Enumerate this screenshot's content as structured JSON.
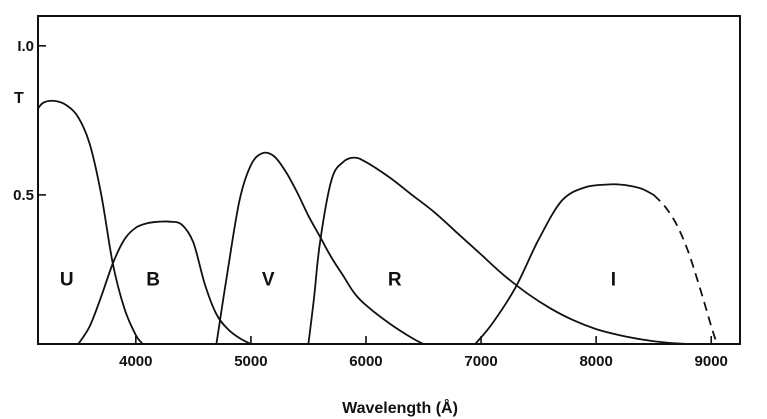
{
  "chart_data": {
    "type": "line",
    "title": "",
    "xlabel": "Wavelength (Å)",
    "ylabel": "T",
    "xlim": [
      3150,
      9250
    ],
    "ylim": [
      0,
      1.1
    ],
    "grid": false,
    "x_ticks": [
      4000,
      5000,
      6000,
      7000,
      8000,
      9000
    ],
    "x_tick_labels": [
      "4000",
      "5000",
      "6000",
      "7000",
      "8000",
      "9000"
    ],
    "y_ticks": [
      0.5,
      1.0
    ],
    "y_tick_labels": [
      "0.5",
      "I.0"
    ],
    "band_labels": [
      {
        "text": "U",
        "x": 3400,
        "y": 0.22
      },
      {
        "text": "B",
        "x": 4150,
        "y": 0.22
      },
      {
        "text": "V",
        "x": 5150,
        "y": 0.22
      },
      {
        "text": "R",
        "x": 6250,
        "y": 0.22
      },
      {
        "text": "I",
        "x": 8150,
        "y": 0.22
      }
    ],
    "series": [
      {
        "id": "U",
        "x": [
          3150,
          3200,
          3300,
          3400,
          3500,
          3600,
          3700,
          3800,
          3900,
          4000,
          4060
        ],
        "y": [
          0.79,
          0.81,
          0.815,
          0.8,
          0.76,
          0.67,
          0.5,
          0.27,
          0.12,
          0.03,
          0.0
        ]
      },
      {
        "id": "B",
        "x": [
          3500,
          3600,
          3700,
          3800,
          3900,
          4000,
          4100,
          4200,
          4300,
          4400,
          4500,
          4600,
          4700,
          4800,
          4900,
          5000
        ],
        "y": [
          0.0,
          0.06,
          0.16,
          0.27,
          0.35,
          0.39,
          0.405,
          0.41,
          0.41,
          0.4,
          0.34,
          0.2,
          0.1,
          0.05,
          0.02,
          0.0
        ]
      },
      {
        "id": "V",
        "x": [
          4700,
          4800,
          4900,
          5000,
          5100,
          5200,
          5300,
          5400,
          5500,
          5600,
          5700,
          5800,
          5900,
          6000,
          6200,
          6400,
          6500
        ],
        "y": [
          0.0,
          0.25,
          0.48,
          0.6,
          0.64,
          0.63,
          0.58,
          0.51,
          0.43,
          0.36,
          0.29,
          0.23,
          0.17,
          0.13,
          0.07,
          0.02,
          0.0
        ]
      },
      {
        "id": "R",
        "x": [
          5500,
          5550,
          5600,
          5700,
          5800,
          5900,
          6000,
          6200,
          6400,
          6600,
          6800,
          7000,
          7200,
          7400,
          7600,
          7800,
          8000,
          8200,
          8400,
          8600,
          8800
        ],
        "y": [
          0.0,
          0.16,
          0.34,
          0.55,
          0.61,
          0.625,
          0.61,
          0.56,
          0.5,
          0.44,
          0.37,
          0.3,
          0.23,
          0.17,
          0.12,
          0.08,
          0.05,
          0.03,
          0.015,
          0.005,
          0.0
        ]
      },
      {
        "id": "I",
        "x": [
          6950,
          7100,
          7300,
          7500,
          7700,
          7900,
          8100,
          8200,
          8300,
          8400,
          8500
        ],
        "y": [
          0.0,
          0.07,
          0.19,
          0.35,
          0.48,
          0.525,
          0.535,
          0.535,
          0.53,
          0.52,
          0.5
        ]
      },
      {
        "id": "I-extrapolated",
        "dashed": true,
        "x": [
          8500,
          8600,
          8700,
          8800,
          8900,
          9000,
          9050
        ],
        "y": [
          0.5,
          0.46,
          0.4,
          0.31,
          0.19,
          0.06,
          0.0
        ]
      }
    ]
  }
}
